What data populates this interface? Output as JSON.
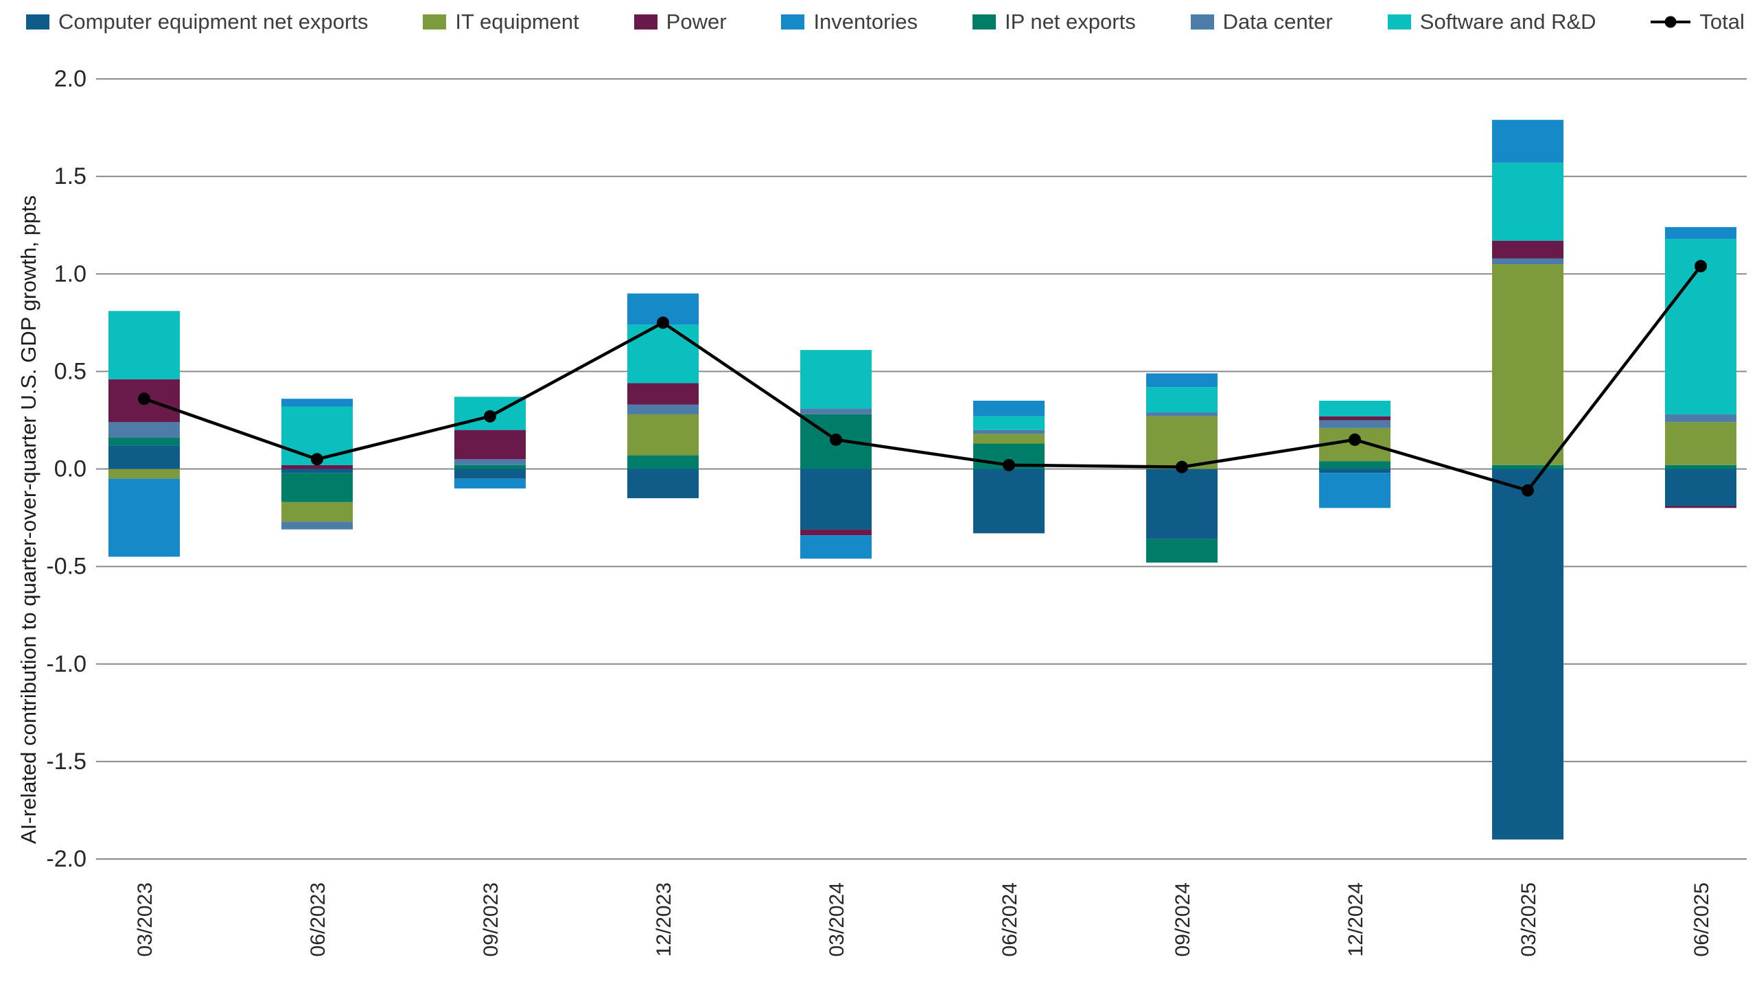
{
  "chart_data": {
    "type": "bar",
    "subtype": "stacked-bars-with-total-line",
    "title": "",
    "xlabel": "",
    "ylabel": "AI-related contribution to quarter-over-quarter U.S. GDP growth, ppts",
    "ylim": [
      -2.0,
      2.0
    ],
    "ytick_step": 0.5,
    "grid": true,
    "grid_color": "#8a8a8a",
    "legend_position": "top",
    "categories": [
      "03/2023",
      "06/2023",
      "09/2023",
      "12/2023",
      "03/2024",
      "06/2024",
      "09/2024",
      "12/2024",
      "03/2025",
      "06/2025"
    ],
    "series": [
      {
        "name": "Computer equipment net exports",
        "color": "#0f5c88",
        "values": [
          0.12,
          -0.02,
          -0.05,
          -0.15,
          -0.31,
          -0.33,
          -0.36,
          -0.02,
          -1.9,
          -0.19
        ]
      },
      {
        "name": "IT equipment",
        "color": "#7d9a3c",
        "values": [
          -0.05,
          -0.1,
          0.0,
          0.21,
          0.0,
          0.05,
          0.27,
          0.17,
          1.03,
          0.22
        ]
      },
      {
        "name": "Power",
        "color": "#6a1a4a",
        "values": [
          0.22,
          0.02,
          0.15,
          0.11,
          -0.03,
          0.0,
          0.0,
          0.02,
          0.09,
          -0.01
        ]
      },
      {
        "name": "Inventories",
        "color": "#1689c9",
        "values": [
          -0.4,
          0.04,
          -0.05,
          0.16,
          -0.12,
          0.08,
          0.07,
          -0.18,
          0.22,
          0.06
        ]
      },
      {
        "name": "IP net exports",
        "color": "#007d68",
        "values": [
          0.04,
          -0.15,
          0.02,
          0.07,
          0.28,
          0.13,
          -0.12,
          0.04,
          0.02,
          0.02
        ]
      },
      {
        "name": "Data center",
        "color": "#4e7ca8",
        "values": [
          0.08,
          -0.04,
          0.03,
          0.05,
          0.03,
          0.02,
          0.02,
          0.04,
          0.03,
          0.04
        ]
      },
      {
        "name": "Software and R&D",
        "color": "#0bbfbf",
        "values": [
          0.35,
          0.3,
          0.17,
          0.3,
          0.3,
          0.07,
          0.13,
          0.08,
          0.4,
          0.9
        ]
      }
    ],
    "stack_order": [
      0,
      4,
      1,
      5,
      2,
      6,
      3
    ],
    "total": {
      "name": "Total",
      "color": "#000000",
      "values": [
        0.36,
        0.05,
        0.27,
        0.75,
        0.15,
        0.02,
        0.01,
        0.15,
        -0.11,
        1.04
      ]
    }
  },
  "axis": {
    "yticks": [
      "2.0",
      "1.5",
      "1.0",
      "0.5",
      "0.0",
      "-0.5",
      "-1.0",
      "-1.5",
      "-2.0"
    ]
  }
}
